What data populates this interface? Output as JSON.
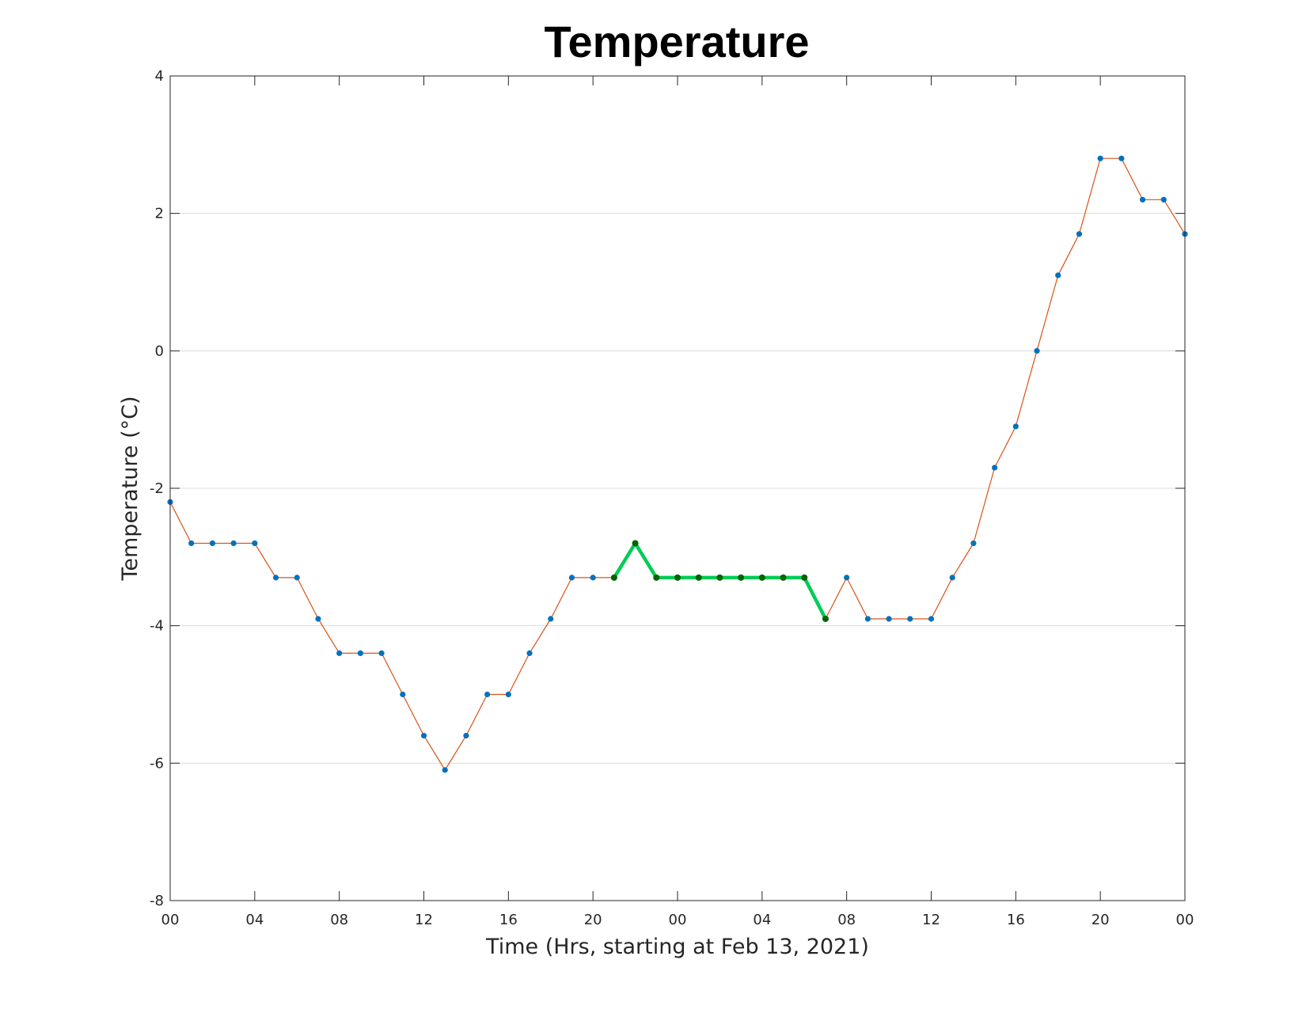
{
  "chart_data": {
    "type": "line",
    "title": "Temperature",
    "xlabel": "Time (Hrs, starting at Feb 13, 2021)",
    "ylabel": "Temperature (°C)",
    "x_unit": "hour",
    "x_start": "2021-02-13 00:00",
    "x_end": "2021-02-15 00:00",
    "xticks": [
      "00",
      "04",
      "08",
      "12",
      "16",
      "20",
      "00",
      "04",
      "08",
      "12",
      "16",
      "20",
      "00"
    ],
    "ylim": [
      -8,
      4
    ],
    "yticks": [
      -8,
      -6,
      -4,
      -2,
      0,
      2,
      4
    ],
    "grid": "y",
    "series": [
      {
        "x": [
          "2021-02-13 00:00",
          "2021-02-13 01:00",
          "2021-02-13 02:00",
          "2021-02-13 03:00",
          "2021-02-13 04:00",
          "2021-02-13 05:00",
          "2021-02-13 06:00",
          "2021-02-13 07:00",
          "2021-02-13 08:00",
          "2021-02-13 09:00",
          "2021-02-13 10:00",
          "2021-02-13 11:00",
          "2021-02-13 12:00",
          "2021-02-13 13:00",
          "2021-02-13 14:00",
          "2021-02-13 15:00",
          "2021-02-13 16:00",
          "2021-02-13 17:00",
          "2021-02-13 18:00",
          "2021-02-13 19:00",
          "2021-02-13 20:00",
          "2021-02-13 21:00",
          "2021-02-13 22:00",
          "2021-02-13 23:00",
          "2021-02-14 00:00",
          "2021-02-14 01:00",
          "2021-02-14 02:00",
          "2021-02-14 03:00",
          "2021-02-14 04:00",
          "2021-02-14 05:00",
          "2021-02-14 06:00",
          "2021-02-14 07:00",
          "2021-02-14 08:00",
          "2021-02-14 09:00",
          "2021-02-14 10:00",
          "2021-02-14 11:00",
          "2021-02-14 12:00",
          "2021-02-14 13:00",
          "2021-02-14 14:00",
          "2021-02-14 15:00",
          "2021-02-14 16:00",
          "2021-02-14 17:00",
          "2021-02-14 18:00",
          "2021-02-14 19:00",
          "2021-02-14 20:00",
          "2021-02-14 21:00",
          "2021-02-14 22:00",
          "2021-02-14 23:00",
          "2021-02-15 00:00"
        ],
        "values": [
          -2.2,
          -2.8,
          -2.8,
          -2.8,
          -2.8,
          -3.3,
          -3.3,
          -3.9,
          -4.4,
          -4.4,
          -4.4,
          -5.0,
          -5.6,
          -6.1,
          -5.6,
          -5.0,
          -5.0,
          -4.4,
          -3.9,
          -3.3,
          -3.3,
          -3.3,
          -2.8,
          -3.3,
          -3.3,
          -3.3,
          -3.3,
          -3.3,
          -3.3,
          -3.3,
          -3.3,
          -3.9,
          -3.3,
          -3.9,
          -3.9,
          -3.9,
          -3.9,
          -3.3,
          -2.8,
          -1.7,
          -1.1,
          0.0,
          1.1,
          1.7,
          2.8,
          2.8,
          2.2,
          2.2,
          1.7
        ],
        "line_color": "#d95319",
        "marker_color": "#0072bd"
      },
      {
        "x": [
          "2021-02-13 21:00",
          "2021-02-13 22:00",
          "2021-02-13 23:00",
          "2021-02-14 00:00",
          "2021-02-14 01:00",
          "2021-02-14 02:00",
          "2021-02-14 03:00",
          "2021-02-14 04:00",
          "2021-02-14 05:00",
          "2021-02-14 06:00",
          "2021-02-14 07:00"
        ],
        "values": [
          -3.3,
          -2.8,
          -3.3,
          -3.3,
          -3.3,
          -3.3,
          -3.3,
          -3.3,
          -3.3,
          -3.3,
          -3.9
        ],
        "line_color": "#00cc55",
        "marker_color": "#006400"
      }
    ]
  }
}
